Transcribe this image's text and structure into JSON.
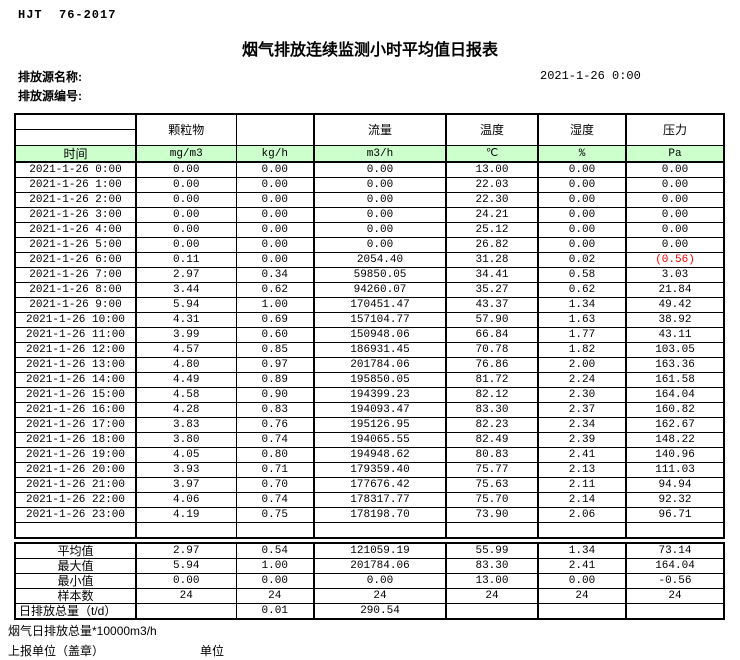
{
  "header": {
    "doc_code": "HJT  76-2017",
    "title": "烟气排放连续监测小时平均值日报表",
    "source_name_label": "排放源名称:",
    "source_id_label": "排放源编号:",
    "report_datetime": "2021-1-26 0:00"
  },
  "table": {
    "group_headers": [
      "颗粒物",
      "",
      "流量",
      "温度",
      "湿度",
      "压力"
    ],
    "time_header": "时间",
    "unit_headers": [
      "mg/m3",
      "kg/h",
      "m3/h",
      "℃",
      "%",
      "Pa"
    ],
    "rows": [
      {
        "time": "2021-1-26 0:00",
        "values": [
          "0.00",
          "0.00",
          "0.00",
          "13.00",
          "0.00",
          "0.00"
        ]
      },
      {
        "time": "2021-1-26 1:00",
        "values": [
          "0.00",
          "0.00",
          "0.00",
          "22.03",
          "0.00",
          "0.00"
        ]
      },
      {
        "time": "2021-1-26 2:00",
        "values": [
          "0.00",
          "0.00",
          "0.00",
          "22.30",
          "0.00",
          "0.00"
        ]
      },
      {
        "time": "2021-1-26 3:00",
        "values": [
          "0.00",
          "0.00",
          "0.00",
          "24.21",
          "0.00",
          "0.00"
        ]
      },
      {
        "time": "2021-1-26 4:00",
        "values": [
          "0.00",
          "0.00",
          "0.00",
          "25.12",
          "0.00",
          "0.00"
        ]
      },
      {
        "time": "2021-1-26 5:00",
        "values": [
          "0.00",
          "0.00",
          "0.00",
          "26.82",
          "0.00",
          "0.00"
        ]
      },
      {
        "time": "2021-1-26 6:00",
        "values": [
          "0.11",
          "0.00",
          "2054.40",
          "31.28",
          "0.02",
          "(0.56)"
        ]
      },
      {
        "time": "2021-1-26 7:00",
        "values": [
          "2.97",
          "0.34",
          "59850.05",
          "34.41",
          "0.58",
          "3.03"
        ]
      },
      {
        "time": "2021-1-26 8:00",
        "values": [
          "3.44",
          "0.62",
          "94260.07",
          "35.27",
          "0.62",
          "21.84"
        ]
      },
      {
        "time": "2021-1-26 9:00",
        "values": [
          "5.94",
          "1.00",
          "170451.47",
          "43.37",
          "1.34",
          "49.42"
        ]
      },
      {
        "time": "2021-1-26 10:00",
        "values": [
          "4.31",
          "0.69",
          "157104.77",
          "57.90",
          "1.63",
          "38.92"
        ]
      },
      {
        "time": "2021-1-26 11:00",
        "values": [
          "3.99",
          "0.60",
          "150948.06",
          "66.84",
          "1.77",
          "43.11"
        ]
      },
      {
        "time": "2021-1-26 12:00",
        "values": [
          "4.57",
          "0.85",
          "186931.45",
          "70.78",
          "1.82",
          "103.05"
        ]
      },
      {
        "time": "2021-1-26 13:00",
        "values": [
          "4.80",
          "0.97",
          "201784.06",
          "76.86",
          "2.00",
          "163.36"
        ]
      },
      {
        "time": "2021-1-26 14:00",
        "values": [
          "4.49",
          "0.89",
          "195850.05",
          "81.72",
          "2.24",
          "161.58"
        ]
      },
      {
        "time": "2021-1-26 15:00",
        "values": [
          "4.58",
          "0.90",
          "194399.23",
          "82.12",
          "2.30",
          "164.04"
        ]
      },
      {
        "time": "2021-1-26 16:00",
        "values": [
          "4.28",
          "0.83",
          "194093.47",
          "83.30",
          "2.37",
          "160.82"
        ]
      },
      {
        "time": "2021-1-26 17:00",
        "values": [
          "3.83",
          "0.76",
          "195126.95",
          "82.23",
          "2.34",
          "162.67"
        ]
      },
      {
        "time": "2021-1-26 18:00",
        "values": [
          "3.80",
          "0.74",
          "194065.55",
          "82.49",
          "2.39",
          "148.22"
        ]
      },
      {
        "time": "2021-1-26 19:00",
        "values": [
          "4.05",
          "0.80",
          "194948.62",
          "80.83",
          "2.41",
          "140.96"
        ]
      },
      {
        "time": "2021-1-26 20:00",
        "values": [
          "3.93",
          "0.71",
          "179359.40",
          "75.77",
          "2.13",
          "111.03"
        ]
      },
      {
        "time": "2021-1-26 21:00",
        "values": [
          "3.97",
          "0.70",
          "177676.42",
          "75.63",
          "2.11",
          "94.94"
        ]
      },
      {
        "time": "2021-1-26 22:00",
        "values": [
          "4.06",
          "0.74",
          "178317.77",
          "75.70",
          "2.14",
          "92.32"
        ]
      },
      {
        "time": "2021-1-26 23:00",
        "values": [
          "4.19",
          "0.75",
          "178198.70",
          "73.90",
          "2.06",
          "96.71"
        ]
      }
    ],
    "summary": [
      {
        "label": "平均值",
        "values": [
          "2.97",
          "0.54",
          "121059.19",
          "55.99",
          "1.34",
          "73.14"
        ]
      },
      {
        "label": "最大值",
        "values": [
          "5.94",
          "1.00",
          "201784.06",
          "83.30",
          "2.41",
          "164.04"
        ]
      },
      {
        "label": "最小值",
        "values": [
          "0.00",
          "0.00",
          "0.00",
          "13.00",
          "0.00",
          "-0.56"
        ]
      },
      {
        "label": "样本数",
        "values": [
          "24",
          "24",
          "24",
          "24",
          "24",
          "24"
        ]
      },
      {
        "label": "日排放总量（t/d）",
        "values": [
          "",
          "0.01",
          "290.54",
          "",
          "",
          ""
        ]
      }
    ]
  },
  "footer": {
    "note": "烟气日排放总量*10000m3/h",
    "report_unit_label": "上报单位（盖章）",
    "unit_label": "单位"
  },
  "colors": {
    "header_green": "#ccffcc",
    "alarm_red": "#ff0000"
  }
}
